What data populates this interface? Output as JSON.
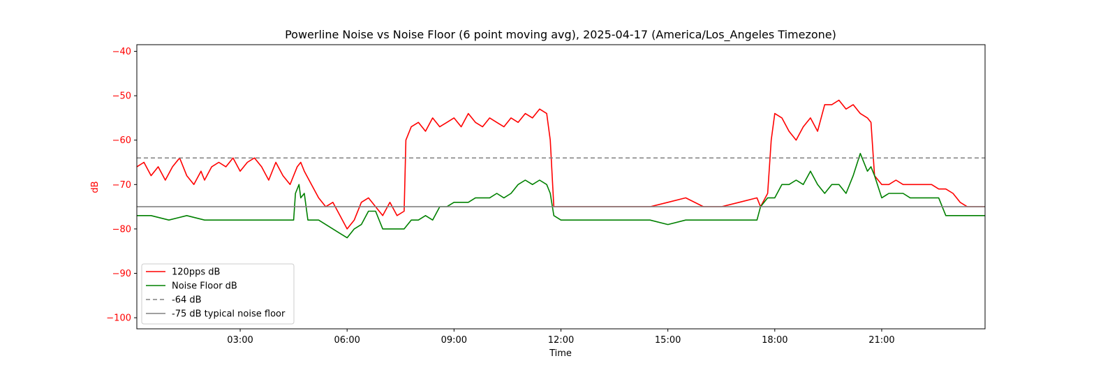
{
  "chart_data": {
    "type": "line",
    "title": "Powerline Noise vs Noise Floor (6 point moving avg), 2025-04-17 (America/Los_Angeles Timezone)",
    "xlabel": "Time",
    "ylabel": "dB",
    "x_unit": "hours",
    "xlim": [
      0.1,
      23.9
    ],
    "ylim": [
      -102.5,
      -38.5
    ],
    "x_ticks": [
      {
        "value": 3,
        "label": "03:00"
      },
      {
        "value": 6,
        "label": "06:00"
      },
      {
        "value": 9,
        "label": "09:00"
      },
      {
        "value": 12,
        "label": "12:00"
      },
      {
        "value": 15,
        "label": "15:00"
      },
      {
        "value": 18,
        "label": "18:00"
      },
      {
        "value": 21,
        "label": "21:00"
      }
    ],
    "y_ticks": [
      {
        "value": -40,
        "label": "−40"
      },
      {
        "value": -50,
        "label": "−50"
      },
      {
        "value": -60,
        "label": "−60"
      },
      {
        "value": -70,
        "label": "−70"
      },
      {
        "value": -80,
        "label": "−80"
      },
      {
        "value": -90,
        "label": "−90"
      },
      {
        "value": -100,
        "label": "−100"
      }
    ],
    "ytick_color": "#ff0000",
    "grid": false,
    "legend_position": "lower-left",
    "series": [
      {
        "name": "120pps dB",
        "color": "#ff0000",
        "style": "solid",
        "x": [
          0.1,
          0.3,
          0.5,
          0.7,
          0.9,
          1.1,
          1.3,
          1.5,
          1.7,
          1.9,
          2.0,
          2.2,
          2.4,
          2.6,
          2.8,
          3.0,
          3.2,
          3.4,
          3.6,
          3.8,
          4.0,
          4.2,
          4.4,
          4.6,
          4.7,
          4.8,
          5.0,
          5.2,
          5.4,
          5.6,
          5.8,
          6.0,
          6.2,
          6.4,
          6.6,
          6.8,
          7.0,
          7.2,
          7.4,
          7.6,
          7.65,
          7.8,
          8.0,
          8.2,
          8.4,
          8.6,
          8.8,
          9.0,
          9.2,
          9.4,
          9.6,
          9.8,
          10.0,
          10.2,
          10.4,
          10.6,
          10.8,
          11.0,
          11.2,
          11.4,
          11.6,
          11.7,
          11.8,
          12.0,
          12.5,
          13.0,
          13.5,
          14.0,
          14.5,
          15.0,
          15.5,
          16.0,
          16.5,
          17.0,
          17.5,
          17.6,
          17.8,
          17.9,
          18.0,
          18.2,
          18.4,
          18.6,
          18.8,
          19.0,
          19.2,
          19.4,
          19.6,
          19.8,
          20.0,
          20.2,
          20.4,
          20.6,
          20.7,
          20.8,
          21.0,
          21.2,
          21.4,
          21.6,
          21.8,
          22.0,
          22.2,
          22.4,
          22.6,
          22.8,
          23.0,
          23.2,
          23.4,
          23.6,
          23.8,
          23.9
        ],
        "y": [
          -66,
          -65,
          -68,
          -66,
          -69,
          -66,
          -64,
          -68,
          -70,
          -67,
          -69,
          -66,
          -65,
          -66,
          -64,
          -67,
          -65,
          -64,
          -66,
          -69,
          -65,
          -68,
          -70,
          -66,
          -65,
          -67,
          -70,
          -73,
          -75,
          -74,
          -77,
          -80,
          -78,
          -74,
          -73,
          -75,
          -77,
          -74,
          -77,
          -76,
          -60,
          -57,
          -56,
          -58,
          -55,
          -57,
          -56,
          -55,
          -57,
          -54,
          -56,
          -57,
          -55,
          -56,
          -57,
          -55,
          -56,
          -54,
          -55,
          -53,
          -54,
          -60,
          -75,
          -75,
          -75,
          -75,
          -75,
          -75,
          -75,
          -74,
          -73,
          -75,
          -75,
          -74,
          -73,
          -75,
          -72,
          -60,
          -54,
          -55,
          -58,
          -60,
          -57,
          -55,
          -58,
          -52,
          -52,
          -51,
          -53,
          -52,
          -54,
          -55,
          -56,
          -68,
          -70,
          -70,
          -69,
          -70,
          -70,
          -70,
          -70,
          -70,
          -71,
          -71,
          -72,
          -74,
          -75,
          -75,
          -75,
          -75
        ]
      },
      {
        "name": "Noise Floor dB",
        "color": "#008000",
        "style": "solid",
        "x": [
          0.1,
          0.5,
          1.0,
          1.5,
          2.0,
          2.5,
          3.0,
          3.5,
          4.0,
          4.5,
          4.55,
          4.65,
          4.7,
          4.8,
          4.9,
          5.0,
          5.2,
          5.4,
          5.6,
          5.8,
          6.0,
          6.2,
          6.4,
          6.6,
          6.8,
          7.0,
          7.2,
          7.4,
          7.6,
          7.8,
          8.0,
          8.2,
          8.4,
          8.6,
          8.8,
          9.0,
          9.2,
          9.4,
          9.6,
          9.8,
          10.0,
          10.2,
          10.4,
          10.6,
          10.8,
          11.0,
          11.2,
          11.4,
          11.6,
          11.7,
          11.8,
          12.0,
          12.5,
          13.0,
          13.5,
          14.0,
          14.5,
          15.0,
          15.5,
          16.0,
          16.5,
          17.0,
          17.5,
          17.6,
          17.8,
          18.0,
          18.2,
          18.4,
          18.6,
          18.8,
          19.0,
          19.2,
          19.4,
          19.6,
          19.8,
          20.0,
          20.2,
          20.4,
          20.6,
          20.7,
          20.8,
          21.0,
          21.2,
          21.4,
          21.6,
          21.8,
          22.0,
          22.2,
          22.4,
          22.6,
          22.8,
          23.0,
          23.2,
          23.4,
          23.6,
          23.8,
          23.9
        ],
        "y": [
          -77,
          -77,
          -78,
          -77,
          -78,
          -78,
          -78,
          -78,
          -78,
          -78,
          -72,
          -70,
          -73,
          -72,
          -78,
          -78,
          -78,
          -79,
          -80,
          -81,
          -82,
          -80,
          -79,
          -76,
          -76,
          -80,
          -80,
          -80,
          -80,
          -78,
          -78,
          -77,
          -78,
          -75,
          -75,
          -74,
          -74,
          -74,
          -73,
          -73,
          -73,
          -72,
          -73,
          -72,
          -70,
          -69,
          -70,
          -69,
          -70,
          -72,
          -77,
          -78,
          -78,
          -78,
          -78,
          -78,
          -78,
          -79,
          -78,
          -78,
          -78,
          -78,
          -78,
          -75,
          -73,
          -73,
          -70,
          -70,
          -69,
          -70,
          -67,
          -70,
          -72,
          -70,
          -70,
          -72,
          -68,
          -63,
          -67,
          -66,
          -68,
          -73,
          -72,
          -72,
          -72,
          -73,
          -73,
          -73,
          -73,
          -73,
          -77,
          -77,
          -77,
          -77,
          -77,
          -77,
          -77
        ]
      },
      {
        "name": "-64 dB",
        "color": "#808080",
        "style": "dashed",
        "x": [
          0.1,
          23.9
        ],
        "y": [
          -64,
          -64
        ]
      },
      {
        "name": "-75 dB typical noise floor",
        "color": "#808080",
        "style": "solid",
        "x": [
          0.1,
          23.9
        ],
        "y": [
          -75,
          -75
        ]
      }
    ]
  }
}
